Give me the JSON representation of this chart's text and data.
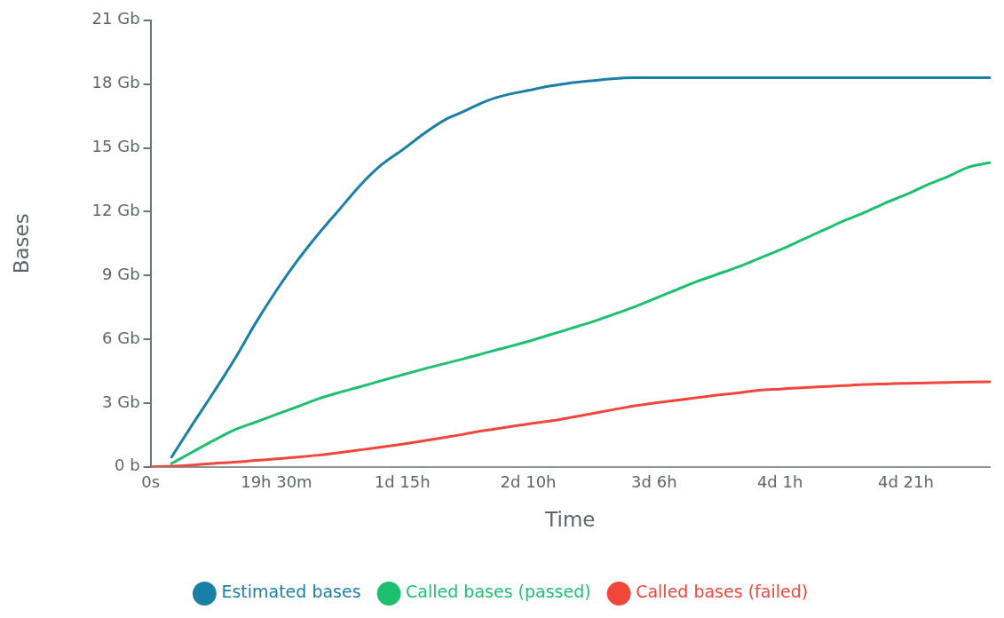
{
  "chart_data": {
    "type": "line",
    "xlabel": "Time",
    "ylabel": "Bases",
    "categories": [
      "0s",
      null,
      null,
      null,
      null,
      null,
      "19h 30m",
      null,
      null,
      null,
      null,
      null,
      "1d 15h",
      null,
      null,
      null,
      null,
      null,
      "2d 10h",
      null,
      null,
      null,
      null,
      null,
      "3d 6h",
      null,
      null,
      null,
      null,
      null,
      "4d 1h",
      null,
      null,
      null,
      null,
      null,
      "4d 21h",
      null,
      null,
      null,
      null
    ],
    "ylim": [
      0,
      21
    ],
    "yticks": [
      {
        "value": 0,
        "label": "0 b"
      },
      {
        "value": 3,
        "label": "3 Gb"
      },
      {
        "value": 6,
        "label": "6 Gb"
      },
      {
        "value": 9,
        "label": "9 Gb"
      },
      {
        "value": 12,
        "label": "12 Gb"
      },
      {
        "value": 15,
        "label": "15 Gb"
      },
      {
        "value": 18,
        "label": "18 Gb"
      },
      {
        "value": 21,
        "label": "21 Gb"
      }
    ],
    "grid": false,
    "legend": "bottom",
    "marker": "none",
    "line_style": "solid",
    "series": [
      {
        "name": "Estimated bases",
        "color": "#1a7fa6",
        "values": [
          null,
          0.46,
          2.0,
          3.5,
          5.05,
          6.75,
          8.3,
          9.7,
          10.95,
          12.1,
          13.25,
          14.2,
          14.9,
          15.65,
          16.3,
          16.75,
          17.2,
          17.5,
          17.7,
          17.9,
          18.05,
          18.15,
          18.25,
          18.3,
          18.3,
          18.3,
          18.3,
          18.3,
          18.3,
          18.3,
          18.3,
          18.3,
          18.3,
          18.3,
          18.3,
          18.3,
          18.3,
          18.3,
          18.3,
          18.3,
          18.3
        ]
      },
      {
        "name": "Called bases (passed)",
        "color": "#1ebf6e",
        "values": [
          null,
          0.16,
          0.7,
          1.24,
          1.74,
          2.1,
          2.47,
          2.83,
          3.2,
          3.5,
          3.77,
          4.05,
          4.33,
          4.6,
          4.85,
          5.1,
          5.37,
          5.63,
          5.9,
          6.2,
          6.5,
          6.8,
          7.15,
          7.5,
          7.9,
          8.3,
          8.7,
          9.05,
          9.4,
          9.8,
          10.2,
          10.65,
          11.1,
          11.55,
          11.95,
          12.4,
          12.8,
          13.25,
          13.65,
          14.1,
          14.3
        ]
      },
      {
        "name": "Called bases (failed)",
        "color": "#f0463c",
        "values": [
          0,
          0.03,
          0.09,
          0.16,
          0.22,
          0.3,
          0.38,
          0.46,
          0.55,
          0.67,
          0.8,
          0.93,
          1.07,
          1.22,
          1.38,
          1.55,
          1.72,
          1.87,
          2.02,
          2.15,
          2.32,
          2.5,
          2.68,
          2.86,
          3.0,
          3.12,
          3.25,
          3.37,
          3.48,
          3.6,
          3.66,
          3.72,
          3.77,
          3.82,
          3.87,
          3.9,
          3.93,
          3.95,
          3.97,
          3.99,
          4.0
        ]
      }
    ]
  }
}
